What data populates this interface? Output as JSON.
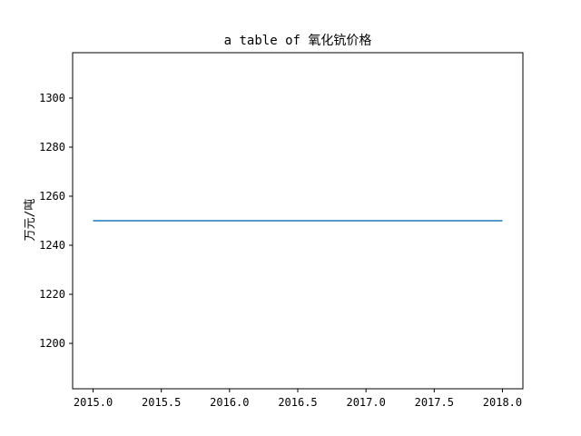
{
  "chart_data": {
    "type": "line",
    "title": "a table of 氧化钪价格",
    "xlabel": "",
    "ylabel": "万元/吨",
    "xlim": [
      2014.85,
      2018.15
    ],
    "ylim": [
      1181.5,
      1318.5
    ],
    "xticks": [
      2015.0,
      2015.5,
      2016.0,
      2016.5,
      2017.0,
      2017.5,
      2018.0
    ],
    "xtick_labels": [
      "2015.0",
      "2015.5",
      "2016.0",
      "2016.5",
      "2017.0",
      "2017.5",
      "2018.0"
    ],
    "yticks": [
      1200,
      1220,
      1240,
      1260,
      1280,
      1300
    ],
    "ytick_labels": [
      "1200",
      "1220",
      "1240",
      "1260",
      "1280",
      "1300"
    ],
    "grid": false,
    "series": [
      {
        "color": "#1f77b4",
        "x": [
          2015,
          2016,
          2017,
          2018
        ],
        "y": [
          1250,
          1250,
          1250,
          1250
        ]
      }
    ]
  }
}
